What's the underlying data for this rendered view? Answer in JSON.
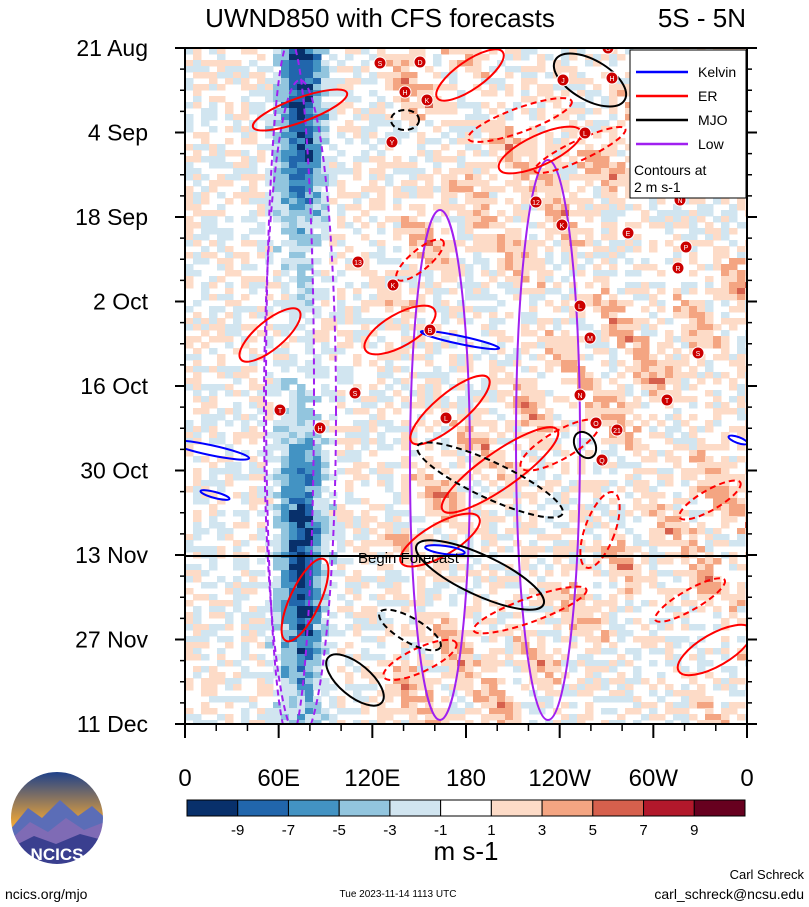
{
  "chart_data": {
    "type": "heatmap",
    "title": "UWND850 with CFS forecasts",
    "region": "5S - 5N",
    "y_ticks": [
      "21 Aug",
      "4 Sep",
      "18 Sep",
      "2 Oct",
      "16 Oct",
      "30 Oct",
      "13 Nov",
      "27 Nov",
      "11 Dec"
    ],
    "x_ticks": [
      "0",
      "60E",
      "120E",
      "180",
      "120W",
      "60W",
      "0"
    ],
    "x_tick_lon": [
      0,
      60,
      120,
      180,
      240,
      300,
      360
    ],
    "forecast_start_label": "Begin Forecast",
    "forecast_start_index": 6,
    "legend": {
      "entries": [
        {
          "name": "Kelvin",
          "color": "#0000ff"
        },
        {
          "name": "ER",
          "color": "#ff0000"
        },
        {
          "name": "MJO",
          "color": "#000000"
        },
        {
          "name": "Low",
          "color": "#a020f0"
        }
      ],
      "note_line1": "Contours at",
      "note_line2": "2 m s-1",
      "placement": "top-right"
    },
    "colorbar": {
      "labels": [
        "-9",
        "-7",
        "-5",
        "-3",
        "-1",
        "1",
        "3",
        "5",
        "7",
        "9"
      ],
      "colors": [
        "#08306b",
        "#2166ac",
        "#4393c3",
        "#92c5de",
        "#d1e5f0",
        "#ffffff",
        "#fddbc7",
        "#f4a582",
        "#d6604d",
        "#b2182b",
        "#67001f"
      ],
      "units": "m s-1"
    },
    "colors": {
      "kelvin": "#0000ff",
      "er": "#ff0000",
      "mjo": "#000000",
      "low": "#a020f0",
      "storm_marker": "#cc0000"
    }
  },
  "footer": {
    "logo_text": "NCICS",
    "site": "ncics.org/mjo",
    "timestamp": "Tue 2023-11-14 1113 UTC",
    "author": "Carl Schreck",
    "email": "carl_schreck@ncsu.edu"
  },
  "storm_markers": [
    "S",
    "D",
    "H",
    "K",
    "Y",
    "G",
    "J",
    "L",
    "12",
    "K",
    "13",
    "K",
    "B",
    "S",
    "T",
    "H",
    "L",
    "L",
    "M",
    "N",
    "O",
    "21",
    "Q",
    "T",
    "S",
    "N",
    "P",
    "R",
    "E",
    "H"
  ]
}
